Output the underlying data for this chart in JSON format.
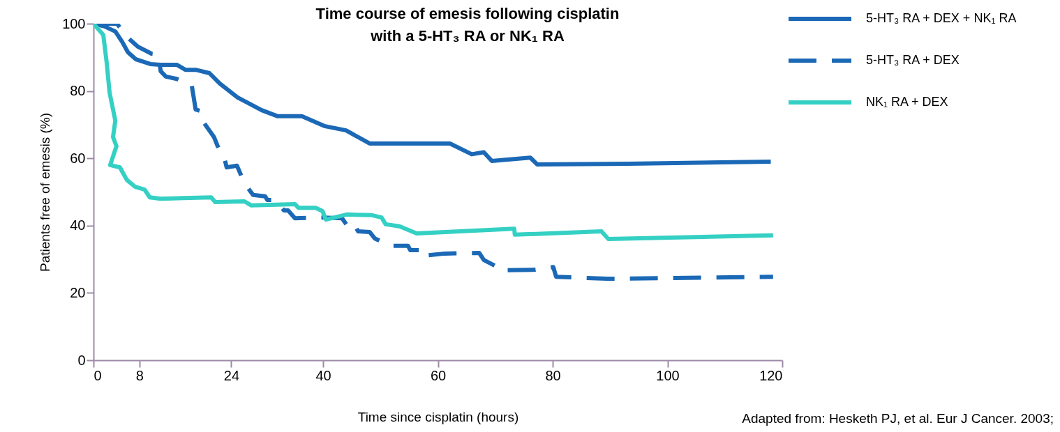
{
  "chart_data": {
    "type": "line",
    "title": "Time course of emesis following cisplatin\nwith a 5-HT₃ RA or NK₁ RA",
    "xlabel": "Time since cisplatin (hours)",
    "ylabel": "Patients free of emesis (%)",
    "xlim": [
      0,
      120
    ],
    "xticks": [
      0,
      8,
      24,
      40,
      60,
      80,
      100,
      120
    ],
    "ylim": [
      0,
      100
    ],
    "yticks": [
      0,
      20,
      40,
      60,
      80,
      100
    ],
    "grid": false,
    "legend": "top right",
    "marker": "none",
    "annotations": [
      "Adapted from: Hesketh PJ, et al. Eur J Cancer. 2003;"
    ],
    "series": [
      {
        "name": "5-HT₃ RA + DEX + NK₁ RA",
        "color": "#1b69b6",
        "line_style": "solid",
        "x": [
          0,
          1.9,
          3.8,
          5,
          6,
          7.4,
          9.9,
          11.7,
          14.5,
          16,
          17.8,
          20.2,
          22,
          25.1,
          29.3,
          32.1,
          36.3,
          40.2,
          44,
          48.1,
          62.1,
          65.9,
          68,
          69.4,
          76.1,
          77.3,
          93.1,
          118
        ],
        "values": [
          100,
          99.2,
          97.7,
          94.6,
          91.5,
          89.4,
          88,
          87.8,
          87.8,
          86.3,
          86.3,
          85.3,
          82.2,
          78.1,
          74.3,
          72.5,
          72.5,
          69.6,
          68.3,
          64.4,
          64.4,
          61.2,
          61.8,
          59.2,
          60.2,
          58.2,
          58.4,
          59
        ]
      },
      {
        "name": "5-HT₃ RA + DEX",
        "color": "#1b69b6",
        "line_style": "dashed",
        "x": [
          0,
          2.3,
          4.1,
          5.8,
          7.7,
          10.1,
          11.3,
          11.7,
          12.6,
          14.5,
          17.1,
          17.8,
          19,
          19.3,
          21,
          21.8,
          22.6,
          23.2,
          25,
          26.3,
          27.8,
          29.9,
          30.3,
          31.7,
          33.2,
          33.9,
          35.1,
          40,
          43.3,
          44.5,
          45.5,
          46.1,
          48.1,
          49,
          51.8,
          54.8,
          55.2,
          57.9,
          57.9,
          61.2,
          67.2,
          68,
          70,
          70.6,
          77,
          80.1,
          80.6,
          89.5,
          118.4
        ],
        "values": [
          100,
          100,
          100,
          96.1,
          93.2,
          91.1,
          90.9,
          85.9,
          84.3,
          83.6,
          81.8,
          74.5,
          73.9,
          70.4,
          66.3,
          62.9,
          61.5,
          57.3,
          57.8,
          52.6,
          49.1,
          48.7,
          47.6,
          47.6,
          44.5,
          44.5,
          42.2,
          42.4,
          42.2,
          39.3,
          40.2,
          38.3,
          38.1,
          36.2,
          34,
          34,
          32.7,
          32.7,
          31.1,
          31.7,
          31.9,
          29.8,
          28,
          26.7,
          26.9,
          27.7,
          24.8,
          24.2,
          24.8
        ]
      },
      {
        "name": "NK₁ RA + DEX",
        "color": "#35d0c4",
        "line_style": "solid",
        "x": [
          0,
          1.7,
          2.3,
          2.8,
          3.8,
          3.4,
          4,
          2.9,
          4.6,
          5.8,
          7.2,
          8.9,
          9.8,
          11.7,
          20.5,
          21.2,
          26.3,
          27.5,
          35.1,
          35.7,
          38.7,
          39.9,
          40.5,
          44.1,
          48.5,
          50.2,
          50.9,
          53.3,
          56.3,
          73.3,
          73.4,
          88.5,
          89.7,
          118.4
        ],
        "values": [
          100,
          96.7,
          88.4,
          79.5,
          71.2,
          66.3,
          63.6,
          58,
          57.3,
          53.6,
          51.6,
          50.7,
          48.4,
          48,
          48.4,
          47,
          47.2,
          46,
          46.4,
          45.3,
          45.3,
          44.3,
          41.8,
          43.3,
          43.1,
          42.4,
          40.4,
          39.8,
          37.7,
          39.1,
          37.3,
          38.3,
          36,
          37.1
        ]
      }
    ]
  }
}
